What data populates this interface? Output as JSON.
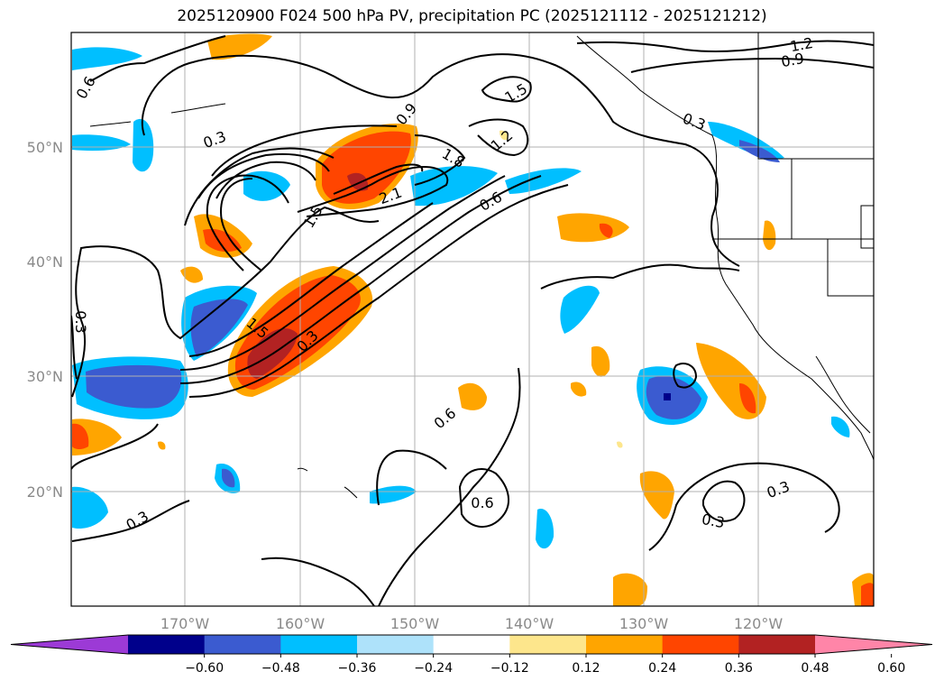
{
  "title": "2025120900 F024 500 hPa PV, precipitation PC (2025121112 - 2025121212)",
  "map": {
    "lat_labels": [
      "50°N",
      "40°N",
      "30°N",
      "20°N"
    ],
    "lon_labels": [
      "170°W",
      "160°W",
      "150°W",
      "140°W",
      "130°W",
      "120°W"
    ],
    "contour_labels": [
      "0.6",
      "0.3",
      "1.2",
      "0.9",
      "0.9",
      "1.5",
      "1.8",
      "2.1",
      "1.5",
      "1.2",
      "0.6",
      "0.3",
      "1.5",
      "0.3",
      "0.3",
      "0.6",
      "0.6",
      "0.3",
      "0.3",
      "0.3"
    ]
  },
  "colorbar": {
    "ticks": [
      "−0.60",
      "−0.48",
      "−0.36",
      "−0.24",
      "−0.12",
      "0.12",
      "0.24",
      "0.36",
      "0.48",
      "0.60"
    ],
    "colors": [
      "#9c3ad6",
      "#00008b",
      "#3b5bd0",
      "#00bfff",
      "#aee2fa",
      "#ffffff",
      "#fde68c",
      "#ffa500",
      "#ff4500",
      "#b22222",
      "#ff85a8"
    ]
  }
}
